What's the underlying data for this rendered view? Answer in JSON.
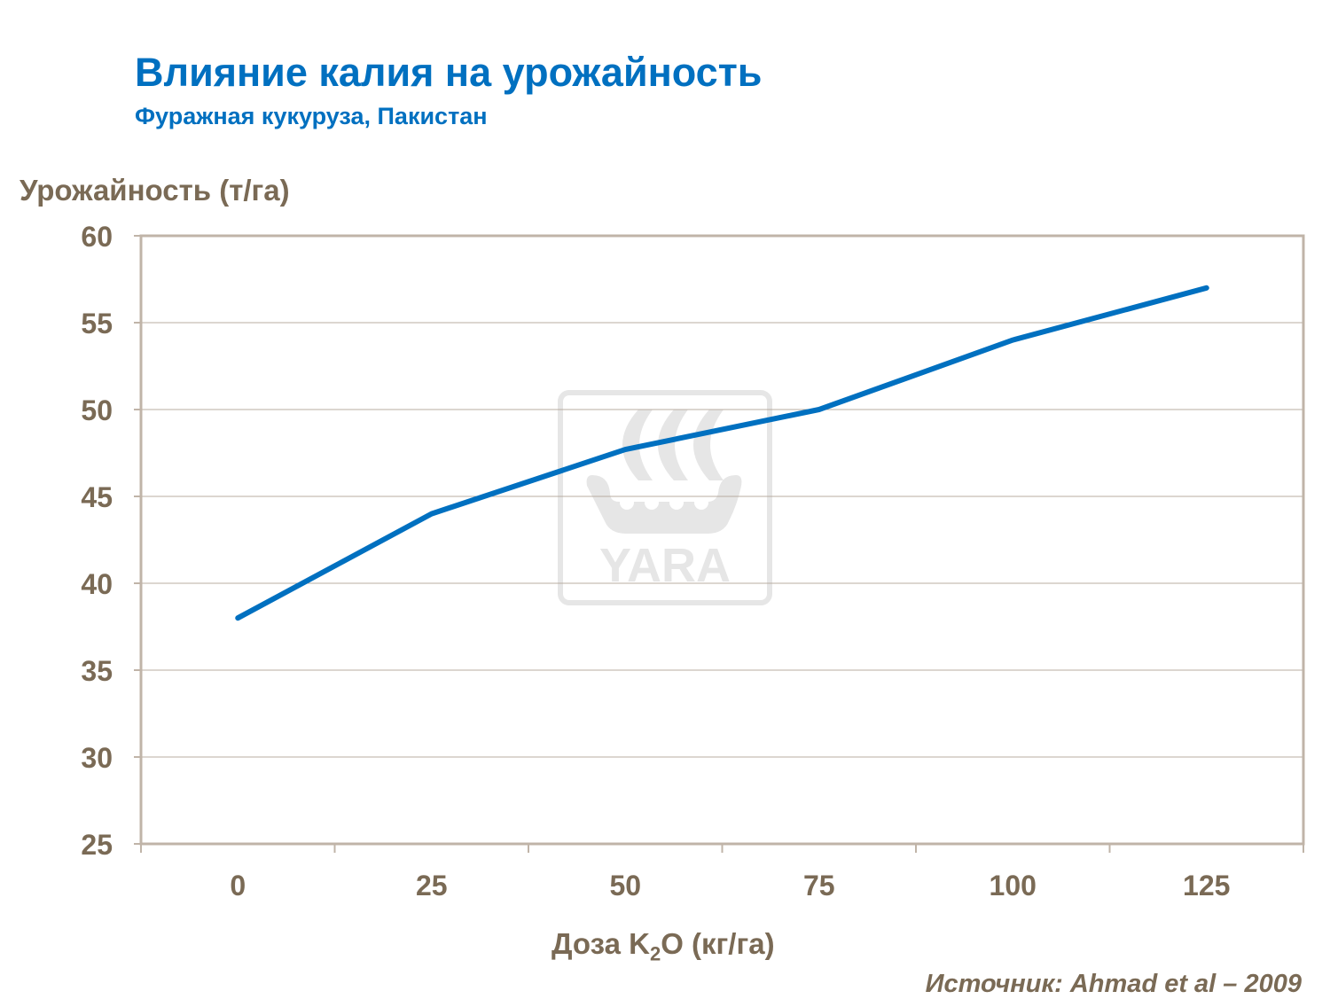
{
  "colors": {
    "line": "#0070c0",
    "text": "#7a6a55",
    "grid": "#b8aca0",
    "title": "#0070c0"
  },
  "chart_data": {
    "type": "line",
    "title": "Влияние калия на урожайность",
    "subtitle": "Фуражная кукуруза, Пакистан",
    "ylabel": "Урожайность (т/га)",
    "xlabel_parts": [
      "Доза K",
      "2",
      "O (кг/га)"
    ],
    "source": "Источник:  Ahmad et al – 2009",
    "x": [
      0,
      25,
      50,
      75,
      100,
      125
    ],
    "categories": [
      "0",
      "25",
      "50",
      "75",
      "100",
      "125"
    ],
    "series": [
      {
        "name": "Урожайность",
        "values": [
          38,
          44,
          47.7,
          50,
          54,
          57
        ]
      }
    ],
    "ylim": [
      25,
      60
    ],
    "yticks": [
      25,
      30,
      35,
      40,
      45,
      50,
      55,
      60
    ],
    "grid": true,
    "watermark": "YARA"
  }
}
